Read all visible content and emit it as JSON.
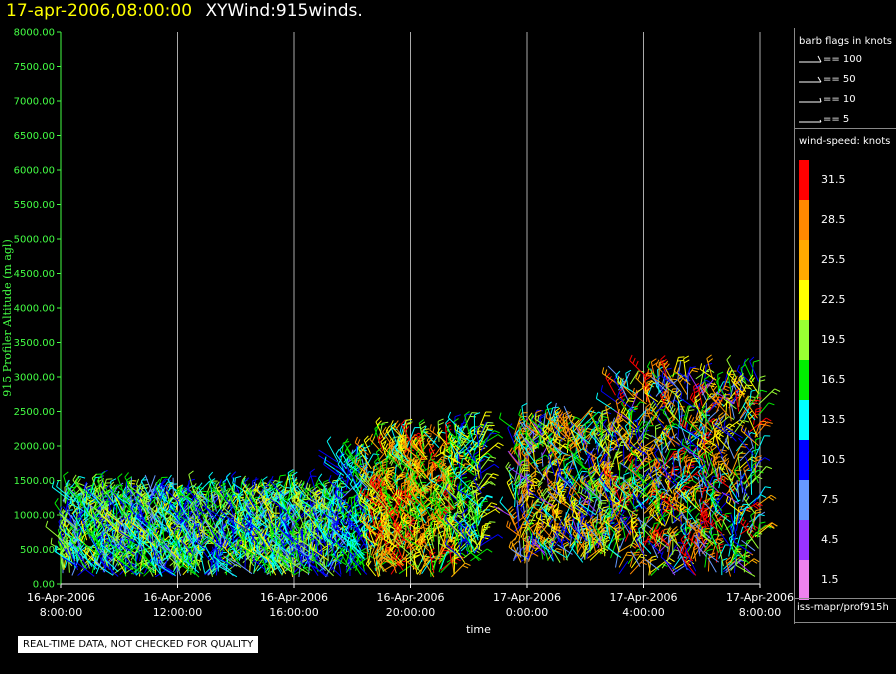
{
  "header": {
    "date_label": "17-apr-2006,08:00:00",
    "product_label": "XYWind:915winds."
  },
  "chart_data": {
    "type": "scatter",
    "title": "17-apr-2006,08:00:00 XYWind:915winds.",
    "xlabel": "time",
    "ylabel": "915 Profiler Altitude (m agl)",
    "ylim": [
      0,
      8000
    ],
    "y_ticks": [
      "0.00",
      "500.00",
      "1000.00",
      "1500.00",
      "2000.00",
      "2500.00",
      "3000.00",
      "3500.00",
      "4000.00",
      "4500.00",
      "5000.00",
      "5500.00",
      "6000.00",
      "6500.00",
      "7000.00",
      "7500.00",
      "8000.00"
    ],
    "x_ticks": [
      {
        "date": "16-Apr-2006",
        "time": "8:00:00"
      },
      {
        "date": "16-Apr-2006",
        "time": "12:00:00"
      },
      {
        "date": "16-Apr-2006",
        "time": "16:00:00"
      },
      {
        "date": "16-Apr-2006",
        "time": "20:00:00"
      },
      {
        "date": "17-Apr-2006",
        "time": "0:00:00"
      },
      {
        "date": "17-Apr-2006",
        "time": "4:00:00"
      },
      {
        "date": "17-Apr-2006",
        "time": "8:00:00"
      }
    ],
    "xlim_hours": [
      0,
      24
    ],
    "grid": "vertical",
    "series_note_colors": [
      "#ee82ee",
      "#9933ff",
      "#6699ff",
      "#0000ff",
      "#00ffff",
      "#00ee00",
      "#99ff33",
      "#ffff00",
      "#ffaa00",
      "#ff8800",
      "#ff0000"
    ],
    "wind_speed_bins_knots": [
      1.5,
      4.5,
      7.5,
      10.5,
      13.5,
      16.5,
      19.5,
      22.5,
      25.5,
      28.5,
      31.5
    ],
    "regions": [
      {
        "t_start": 0.0,
        "t_end": 9.5,
        "alt_min": 100,
        "alt_max": 1300,
        "speed_range": [
          7,
          22
        ]
      },
      {
        "t_start": 9.5,
        "t_end": 10.5,
        "alt_min": 100,
        "alt_max": 1800,
        "speed_range": [
          8,
          18
        ]
      },
      {
        "t_start": 10.5,
        "t_end": 13.5,
        "alt_min": 100,
        "alt_max": 2100,
        "speed_range": [
          14,
          32
        ]
      },
      {
        "t_start": 13.5,
        "t_end": 14.5,
        "alt_min": 300,
        "alt_max": 2200,
        "speed_range": [
          10,
          24
        ]
      },
      {
        "t_start": 15.5,
        "t_end": 19.0,
        "alt_min": 300,
        "alt_max": 2300,
        "speed_range": [
          5,
          30
        ]
      },
      {
        "t_start": 19.0,
        "t_end": 24.0,
        "alt_min": 100,
        "alt_max": 3000,
        "speed_range": [
          5,
          32
        ]
      }
    ]
  },
  "legend": {
    "flags_title": "barb flags in knots",
    "flags": [
      {
        "label": "== 100"
      },
      {
        "label": "== 50"
      },
      {
        "label": "== 10"
      },
      {
        "label": "== 5"
      }
    ],
    "speed_title": "wind-speed: knots",
    "speed_bins": [
      {
        "label": "31.5",
        "color": "#ff0000"
      },
      {
        "label": "28.5",
        "color": "#ff8800"
      },
      {
        "label": "25.5",
        "color": "#ffaa00"
      },
      {
        "label": "22.5",
        "color": "#ffff00"
      },
      {
        "label": "19.5",
        "color": "#99ff33"
      },
      {
        "label": "16.5",
        "color": "#00ee00"
      },
      {
        "label": "13.5",
        "color": "#00ffff"
      },
      {
        "label": "10.5",
        "color": "#0000ff"
      },
      {
        "label": "7.5",
        "color": "#6699ff"
      },
      {
        "label": "4.5",
        "color": "#9933ff"
      },
      {
        "label": "1.5",
        "color": "#ee82ee"
      }
    ],
    "source": "iss-mapr/prof915h"
  },
  "footer": {
    "qc_note": "REAL-TIME DATA, NOT CHECKED FOR QUALITY"
  }
}
